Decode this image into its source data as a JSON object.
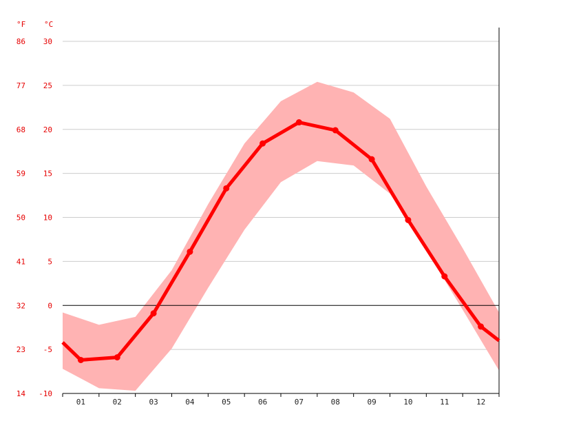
{
  "chart_data": {
    "type": "line",
    "unit_labels": {
      "left": "°F",
      "right": "°C"
    },
    "categories": [
      "01",
      "02",
      "03",
      "04",
      "05",
      "06",
      "07",
      "08",
      "09",
      "10",
      "11",
      "12"
    ],
    "y_ticks_c": [
      "30",
      "25",
      "20",
      "15",
      "10",
      "5",
      "0",
      "-5",
      "-10"
    ],
    "y_ticks_f": [
      "86",
      "77",
      "68",
      "59",
      "50",
      "41",
      "32",
      "23",
      "14"
    ],
    "ylim": [
      -10,
      30
    ],
    "series": [
      {
        "values": [
          -6.2,
          -5.9,
          -0.9,
          6.1,
          13.3,
          18.4,
          20.8,
          19.9,
          16.6,
          9.7,
          3.3,
          -2.4
        ]
      }
    ],
    "band": {
      "upper": [
        -1.0,
        -2.2,
        -1.3,
        4.0,
        11.5,
        18.4,
        23.2,
        25.4,
        24.2,
        21.2,
        13.5,
        6.5,
        0.6
      ],
      "lower": [
        -2.2,
        -9.4,
        -9.7,
        -4.9,
        2.0,
        8.6,
        14.0,
        16.4,
        15.9,
        12.7,
        6.3,
        -0.5,
        -4.9
      ],
      "edges": {
        "upper_left": -0.8,
        "upper_right": -0.8,
        "lower_left": -7.2,
        "lower_right": -7.4
      }
    },
    "colors": {
      "line": "#ff0000",
      "band": "#ffb3b3",
      "axis_text": "#e60000",
      "grid": "#cccccc",
      "zero_line": "#000000"
    }
  }
}
